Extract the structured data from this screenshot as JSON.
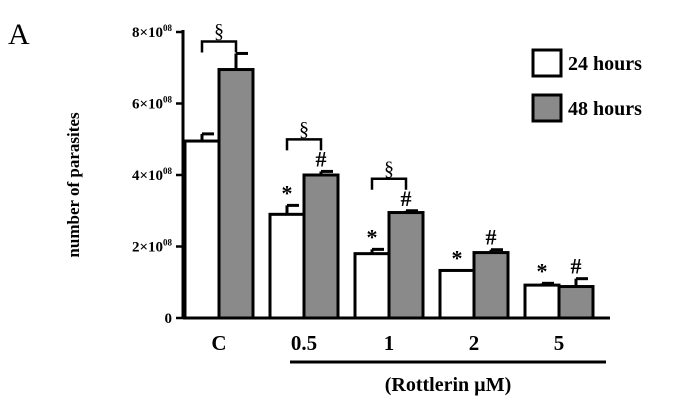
{
  "panel_label": "A",
  "chart_data": {
    "type": "bar",
    "ylabel": "number of parasites",
    "xlabel": "(Rottlerin µM)",
    "categories": [
      "C",
      "0.5",
      "1",
      "2",
      "5"
    ],
    "ylim": [
      0,
      800000000.0
    ],
    "yticks": [
      {
        "value": 0,
        "base": "0",
        "exp": ""
      },
      {
        "value": 200000000.0,
        "base": "2×10",
        "exp": "08"
      },
      {
        "value": 400000000.0,
        "base": "4×10",
        "exp": "08"
      },
      {
        "value": 600000000.0,
        "base": "6×10",
        "exp": "08"
      },
      {
        "value": 800000000.0,
        "base": "8×10",
        "exp": "08"
      }
    ],
    "legend_position": "top-right",
    "series": [
      {
        "name": "24 hours",
        "color": "#ffffff",
        "values": [
          495000000.0,
          290000000.0,
          180000000.0,
          133000000.0,
          92000000.0
        ],
        "errors": [
          20000000.0,
          25000000.0,
          12000000.0,
          0.0,
          5000000.0
        ],
        "markers": [
          "",
          "*",
          "*",
          "*",
          "*"
        ]
      },
      {
        "name": "48 hours",
        "color": "#8a8a8a",
        "values": [
          695000000.0,
          400000000.0,
          295000000.0,
          183000000.0,
          88000000.0
        ],
        "errors": [
          45000000.0,
          10000000.0,
          5000000.0,
          8000000.0,
          22000000.0
        ],
        "markers": [
          "",
          "#",
          "#",
          "#",
          "#"
        ]
      }
    ],
    "significance_brackets": [
      {
        "category_index": 0,
        "symbol": "§"
      },
      {
        "category_index": 1,
        "symbol": "§"
      },
      {
        "category_index": 2,
        "symbol": "§"
      }
    ]
  }
}
